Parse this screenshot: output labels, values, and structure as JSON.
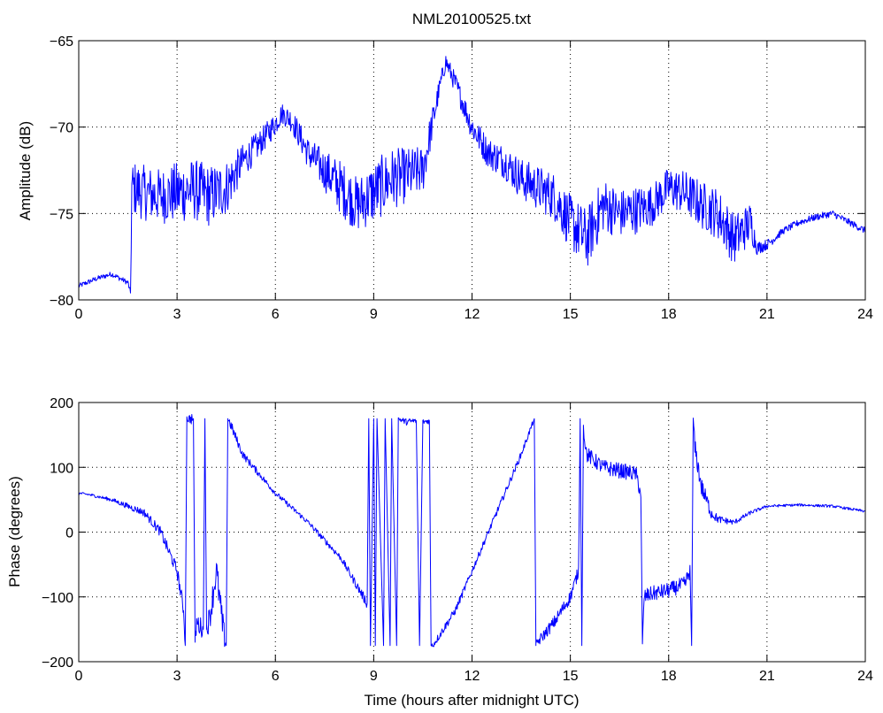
{
  "figure": {
    "title": "NML20100525.txt",
    "background": "#ffffff",
    "series_color": "#0000ff"
  },
  "chart_data": [
    {
      "type": "line",
      "title": "NML20100525.txt",
      "xlabel": "",
      "ylabel": "Amplitude (dB)",
      "xlim": [
        0,
        24
      ],
      "ylim": [
        -80,
        -65
      ],
      "xticks": [
        "0",
        "3",
        "6",
        "9",
        "12",
        "15",
        "18",
        "21",
        "24"
      ],
      "yticks": [
        "−80",
        "−75",
        "−70",
        "−65"
      ],
      "grid": true,
      "series": [
        {
          "color": "#0000ff",
          "x": [
            0,
            0.5,
            1.0,
            1.5,
            1.58,
            1.62,
            2.0,
            2.5,
            3.0,
            3.5,
            4.0,
            4.5,
            5.0,
            5.5,
            6.0,
            6.2,
            6.5,
            7.0,
            7.5,
            8.0,
            8.5,
            9.0,
            9.5,
            10.0,
            10.5,
            11.0,
            11.2,
            11.5,
            12.0,
            12.5,
            13.0,
            13.5,
            14.0,
            14.5,
            15.0,
            15.5,
            16.0,
            16.5,
            17.0,
            17.5,
            18.0,
            18.5,
            19.0,
            19.5,
            20.0,
            20.5,
            20.7,
            21.0,
            21.5,
            22.0,
            22.5,
            23.0,
            23.5,
            24.0
          ],
          "y": [
            -79.2,
            -78.8,
            -78.5,
            -79.0,
            -79.6,
            -73.5,
            -73.8,
            -74.0,
            -73.8,
            -73.6,
            -74.0,
            -73.5,
            -72.0,
            -71.0,
            -69.8,
            -69.2,
            -69.6,
            -71.5,
            -72.5,
            -73.5,
            -74.5,
            -73.8,
            -73.0,
            -72.8,
            -72.5,
            -67.8,
            -66.2,
            -67.5,
            -70.0,
            -71.5,
            -72.0,
            -73.0,
            -73.5,
            -74.0,
            -75.5,
            -76.5,
            -74.5,
            -75.0,
            -74.8,
            -74.5,
            -73.5,
            -73.8,
            -74.5,
            -75.0,
            -76.5,
            -75.5,
            -77.0,
            -76.8,
            -76.0,
            -75.5,
            -75.2,
            -75.0,
            -75.5,
            -76.0
          ],
          "noise": [
            0.15,
            0.15,
            0.15,
            0.15,
            0.15,
            1.6,
            1.6,
            1.6,
            1.8,
            1.8,
            1.8,
            1.6,
            1.0,
            0.8,
            0.7,
            0.6,
            0.7,
            0.9,
            1.2,
            1.6,
            1.6,
            1.8,
            1.8,
            1.6,
            1.4,
            0.6,
            0.5,
            0.6,
            0.8,
            0.9,
            1.0,
            1.2,
            1.3,
            1.4,
            1.6,
            1.8,
            1.6,
            1.4,
            1.4,
            1.2,
            1.2,
            1.3,
            1.4,
            1.5,
            1.5,
            1.2,
            0.4,
            0.3,
            0.2,
            0.2,
            0.2,
            0.2,
            0.2,
            0.2
          ]
        }
      ]
    },
    {
      "type": "line",
      "title": "",
      "xlabel": "Time (hours after midnight UTC)",
      "ylabel": "Phase (degrees)",
      "xlim": [
        0,
        24
      ],
      "ylim": [
        -200,
        200
      ],
      "xticks": [
        "0",
        "3",
        "6",
        "9",
        "12",
        "15",
        "18",
        "21",
        "24"
      ],
      "yticks": [
        "−200",
        "−100",
        "0",
        "100",
        "200"
      ],
      "grid": true,
      "series": [
        {
          "color": "#0000ff",
          "x": [
            0,
            0.3,
            1.0,
            2.0,
            2.5,
            3.0,
            3.2,
            3.25,
            3.3,
            3.5,
            3.55,
            3.6,
            3.8,
            3.85,
            3.9,
            4.0,
            4.2,
            4.4,
            4.5,
            4.55,
            4.6,
            5.0,
            6.0,
            7.0,
            8.0,
            8.8,
            8.85,
            8.9,
            9.0,
            9.05,
            9.1,
            9.3,
            9.35,
            9.5,
            9.55,
            9.7,
            9.75,
            10.0,
            10.3,
            10.4,
            10.5,
            10.7,
            10.75,
            10.8,
            11.0,
            11.5,
            12.0,
            12.5,
            13.0,
            13.5,
            13.9,
            13.95,
            14.0,
            14.5,
            15.0,
            15.25,
            15.3,
            15.35,
            15.4,
            15.5,
            16.0,
            16.5,
            17.0,
            17.15,
            17.2,
            17.25,
            17.5,
            18.0,
            18.5,
            18.65,
            18.7,
            18.75,
            18.8,
            19.0,
            19.3,
            19.5,
            20.0,
            20.5,
            21.0,
            22.0,
            23.0,
            24.0
          ],
          "y": [
            60,
            58,
            50,
            30,
            0,
            -60,
            -120,
            -175,
            175,
            175,
            -170,
            -140,
            -150,
            175,
            -150,
            -130,
            -60,
            -150,
            -175,
            175,
            170,
            120,
            60,
            15,
            -40,
            -110,
            175,
            -175,
            175,
            -175,
            175,
            -175,
            175,
            -175,
            175,
            -175,
            175,
            170,
            172,
            -175,
            170,
            172,
            -175,
            -175,
            -160,
            -120,
            -60,
            0,
            60,
            120,
            175,
            -175,
            -170,
            -140,
            -100,
            -60,
            175,
            -175,
            160,
            120,
            100,
            95,
            90,
            60,
            -175,
            -100,
            -95,
            -90,
            -80,
            -60,
            -175,
            175,
            130,
            70,
            30,
            20,
            15,
            30,
            40,
            42,
            40,
            32
          ],
          "noise": [
            2,
            2,
            3,
            6,
            8,
            10,
            12,
            10,
            6,
            10,
            10,
            15,
            15,
            10,
            15,
            20,
            25,
            25,
            10,
            6,
            8,
            6,
            4,
            4,
            5,
            8,
            4,
            4,
            4,
            4,
            4,
            4,
            4,
            4,
            4,
            4,
            4,
            5,
            5,
            4,
            4,
            5,
            4,
            5,
            6,
            6,
            5,
            5,
            5,
            5,
            4,
            4,
            8,
            10,
            10,
            10,
            6,
            6,
            12,
            12,
            12,
            12,
            12,
            12,
            6,
            12,
            12,
            12,
            12,
            12,
            6,
            6,
            15,
            15,
            10,
            6,
            4,
            3,
            2,
            2,
            2,
            2
          ]
        }
      ]
    }
  ]
}
